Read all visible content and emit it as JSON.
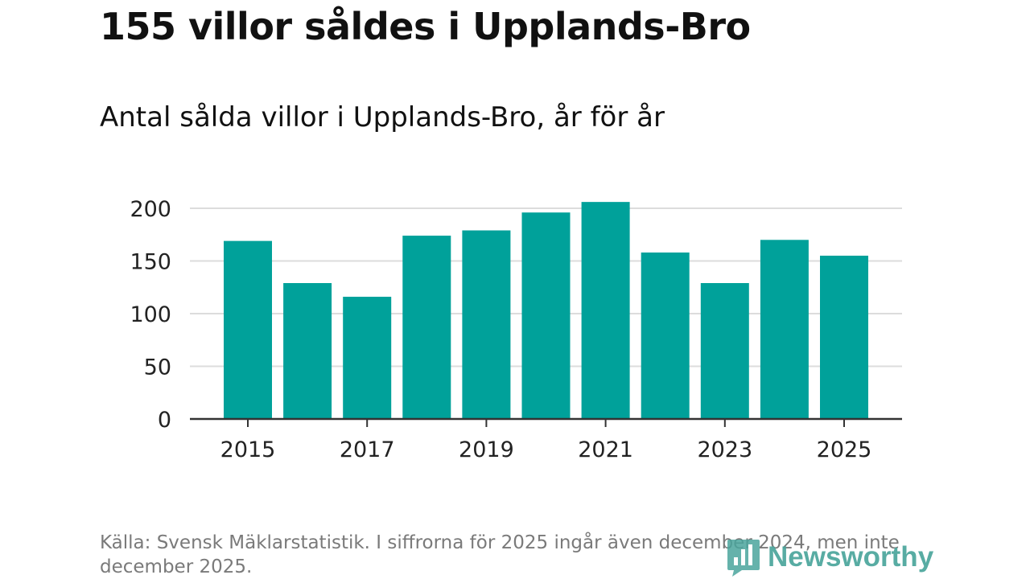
{
  "headline": "155 villor såldes i Upplands-Bro",
  "colors": {
    "bar": "#00a19a",
    "grid": "#dcdcdc",
    "axis": "#333333",
    "text": "#111111",
    "muted": "#7a7a7a",
    "brand": "#4aa59c"
  },
  "chart_data": {
    "type": "bar",
    "title": "Antal sålda villor i Upplands-Bro, år för år",
    "xlabel": "",
    "ylabel": "",
    "categories": [
      "2015",
      "2016",
      "2017",
      "2018",
      "2019",
      "2020",
      "2021",
      "2022",
      "2023",
      "2024",
      "2025"
    ],
    "values": [
      169,
      129,
      116,
      174,
      179,
      196,
      206,
      158,
      129,
      170,
      155
    ],
    "x_tick_labels": [
      "2015",
      "2017",
      "2019",
      "2021",
      "2023",
      "2025"
    ],
    "y_ticks": [
      0,
      50,
      100,
      150,
      200
    ],
    "ylim": [
      0,
      200
    ],
    "grid": true
  },
  "footnote": "Källa: Svensk Mäklarstatistik. I siffrorna för 2025 ingår även december 2024, men inte december 2025.",
  "brand": {
    "name": "Newsworthy",
    "icon": "bar-chart-logo-icon"
  }
}
